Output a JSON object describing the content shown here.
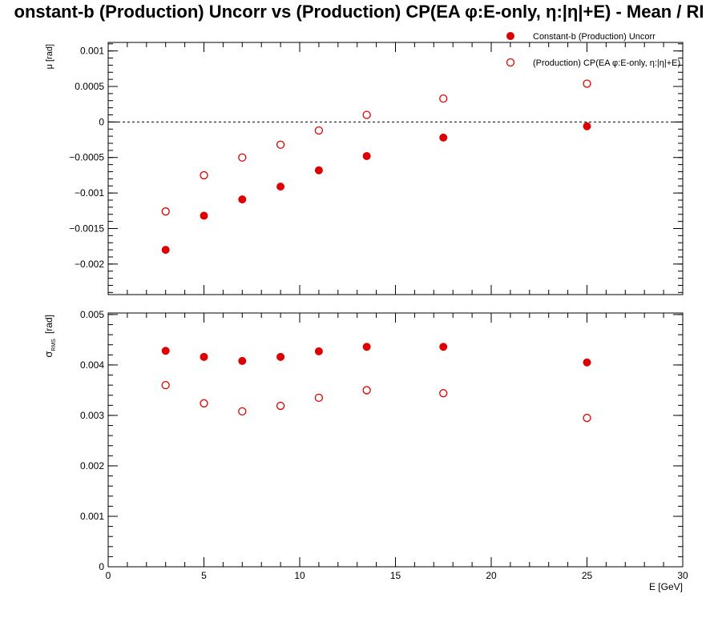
{
  "title": "onstant-b (Production) Uncorr vs (Production) CP(EA φ:E-only, η:|η|+E)  -  Mean / RI",
  "chart_data": [
    {
      "type": "scatter",
      "panel": "mean",
      "ylabel": "μ  [rad]",
      "xlim": [
        0,
        30
      ],
      "ylim": [
        -0.00243,
        0.00112
      ],
      "yticks": [
        -0.002,
        -0.0015,
        -0.001,
        -0.0005,
        0,
        0.0005,
        0.001
      ],
      "ytick_labels": [
        "−0.002",
        "−0.0015",
        "−0.001",
        "−0.0005",
        "0",
        "0.0005",
        "0.001"
      ],
      "reference_line": 0,
      "grid": false,
      "legend": "top-right",
      "series": [
        {
          "name": "Constant-b (Production) Uncorr",
          "marker": "filled-circle",
          "color": "#dd0000",
          "x": [
            3,
            5,
            7,
            9,
            11,
            13.5,
            17.5,
            25
          ],
          "y": [
            -0.0018,
            -0.00132,
            -0.00109,
            -0.00091,
            -0.00068,
            -0.00048,
            -0.00022,
            -6e-05
          ]
        },
        {
          "name": "(Production) CP(EA φ:E-only, η:|η|+E)",
          "marker": "open-circle",
          "color": "#dd0000",
          "x": [
            3,
            5,
            7,
            9,
            11,
            13.5,
            17.5,
            25
          ],
          "y": [
            -0.00126,
            -0.00075,
            -0.0005,
            -0.00032,
            -0.00012,
            0.0001,
            0.00033,
            0.00054
          ]
        }
      ]
    },
    {
      "type": "scatter",
      "panel": "rms",
      "ylabel": "σ",
      "ylabel_sub": "RMS",
      "ylabel_unit": "[rad]",
      "xlabel": "E  [GeV]",
      "xlim": [
        0,
        30
      ],
      "ylim": [
        0,
        0.00503
      ],
      "xticks": [
        0,
        5,
        10,
        15,
        20,
        25,
        30
      ],
      "xtick_labels": [
        "0",
        "5",
        "10",
        "15",
        "20",
        "25",
        "30"
      ],
      "yticks": [
        0,
        0.001,
        0.002,
        0.003,
        0.004,
        0.005
      ],
      "ytick_labels": [
        "0",
        "0.001",
        "0.002",
        "0.003",
        "0.004",
        "0.005"
      ],
      "grid": false,
      "series": [
        {
          "name": "Constant-b (Production) Uncorr",
          "marker": "filled-circle",
          "color": "#dd0000",
          "x": [
            3,
            5,
            7,
            9,
            11,
            13.5,
            17.5,
            25
          ],
          "y": [
            0.00428,
            0.00416,
            0.00408,
            0.00416,
            0.00427,
            0.00436,
            0.00436,
            0.00405
          ]
        },
        {
          "name": "(Production) CP(EA φ:E-only, η:|η|+E)",
          "marker": "open-circle",
          "color": "#dd0000",
          "x": [
            3,
            5,
            7,
            9,
            11,
            13.5,
            17.5,
            25
          ],
          "y": [
            0.0036,
            0.00324,
            0.00308,
            0.00319,
            0.00335,
            0.0035,
            0.00344,
            0.00295
          ]
        }
      ]
    }
  ]
}
